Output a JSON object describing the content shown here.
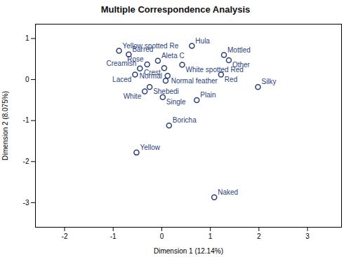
{
  "chart_data": {
    "type": "scatter",
    "title": "Multiple Correspondence Analysis",
    "xlabel": "Dimension 1 (12.14%)",
    "ylabel": "Dimension 2 (8.075%)",
    "xlim": [
      -2.6,
      3.7
    ],
    "ylim": [
      -3.6,
      1.35
    ],
    "xticks": [
      -2,
      -1,
      0,
      1,
      2,
      3
    ],
    "yticks": [
      -3,
      -2,
      -1,
      0,
      1
    ],
    "labels": [
      "Hula",
      "Mottled",
      "Other",
      "White spotted Red",
      "Aleta C",
      "Red",
      "Rose",
      "Crest",
      "Creamish",
      "Normal feather",
      "Laced",
      "Normal",
      "Yellow spotted Re",
      "Barred",
      "Shebedi",
      "White",
      "Silky",
      "Single",
      "Plain",
      "Boricha",
      "Yellow",
      "Naked"
    ],
    "x": [
      0.62,
      1.28,
      1.38,
      0.42,
      -0.08,
      1.22,
      -0.3,
      0.05,
      -0.45,
      0.12,
      -0.55,
      0.08,
      -0.88,
      -0.68,
      -0.25,
      -0.35,
      1.98,
      0.02,
      0.72,
      0.15,
      -0.52,
      1.08
    ],
    "y": [
      0.82,
      0.6,
      0.47,
      0.36,
      0.46,
      0.12,
      0.37,
      0.28,
      0.27,
      0.09,
      0.12,
      -0.03,
      0.7,
      0.61,
      -0.18,
      -0.29,
      -0.18,
      -0.43,
      -0.5,
      -1.12,
      -1.78,
      -2.87
    ],
    "color": "#2B3F7E",
    "marker": "circle",
    "grid": false
  }
}
